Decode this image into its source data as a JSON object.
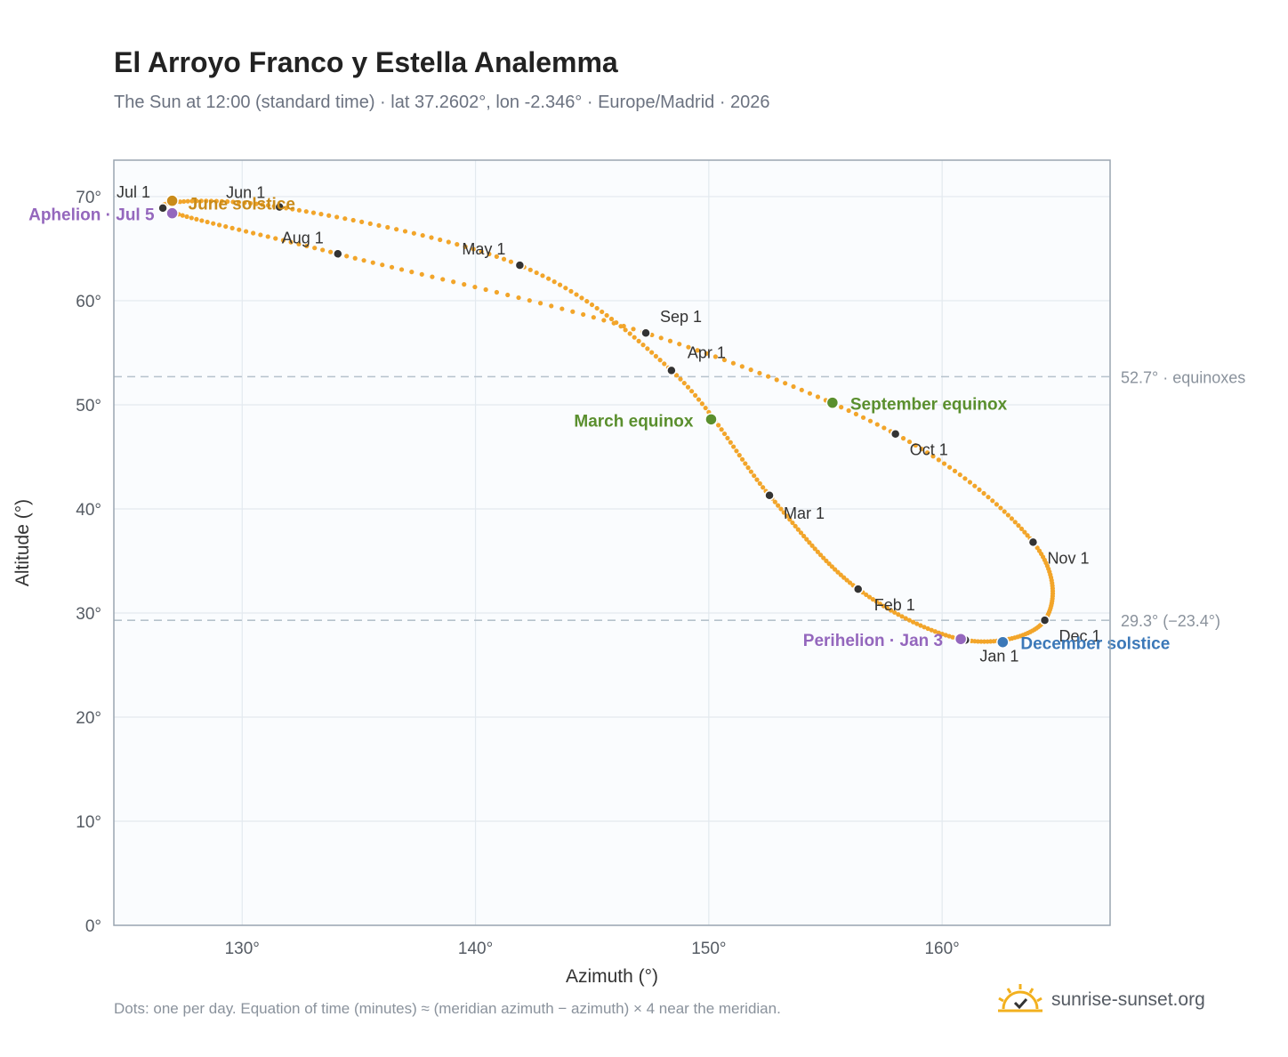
{
  "title": "El Arroyo Franco y Estella Analemma",
  "subtitle": "The Sun at 12:00 (standard time) · lat 37.2602°, lon -2.346° · Europe/Madrid · 2026",
  "footnote": "Dots: one per day. Equation of time (minutes) ≈ (meridian azimuth − azimuth) × 4 near the meridian.",
  "brand": {
    "name": "sunrise-sunset.org",
    "icon": "sun-logo-icon"
  },
  "colors": {
    "curve": "#f2a52a",
    "month_marker": "#333333",
    "solstice": "#c98b1a",
    "equinox": "#5a8f2e",
    "december": "#3b78b8",
    "apsis": "#9467bd",
    "reference_line": "#b6c2cc"
  },
  "chart_data": {
    "type": "scatter",
    "xlabel": "Azimuth (°)",
    "ylabel": "Altitude (°)",
    "xlim": [
      124.5,
      167.2
    ],
    "ylim": [
      0,
      73.5
    ],
    "x_ticks": [
      130,
      140,
      150,
      160
    ],
    "x_tick_labels": [
      "130°",
      "140°",
      "150°",
      "160°"
    ],
    "y_ticks": [
      0,
      10,
      20,
      30,
      40,
      50,
      60,
      70
    ],
    "y_tick_labels": [
      "0°",
      "10°",
      "20°",
      "30°",
      "40°",
      "50°",
      "60°",
      "70°"
    ],
    "grid": true,
    "legend": "none",
    "curve_note": "daily positions",
    "monthly_markers": [
      {
        "label": "Jan 1",
        "azimuth": 161.0,
        "altitude": 27.4
      },
      {
        "label": "Feb 1",
        "azimuth": 156.4,
        "altitude": 32.3
      },
      {
        "label": "Mar 1",
        "azimuth": 152.6,
        "altitude": 41.3
      },
      {
        "label": "Apr 1",
        "azimuth": 148.4,
        "altitude": 53.3
      },
      {
        "label": "May 1",
        "azimuth": 141.9,
        "altitude": 63.4
      },
      {
        "label": "Jun 1",
        "azimuth": 131.6,
        "altitude": 69.0
      },
      {
        "label": "Jul 1",
        "azimuth": 126.6,
        "altitude": 68.9
      },
      {
        "label": "Aug 1",
        "azimuth": 134.1,
        "altitude": 64.5
      },
      {
        "label": "Sep 1",
        "azimuth": 147.3,
        "altitude": 56.9
      },
      {
        "label": "Oct 1",
        "azimuth": 158.0,
        "altitude": 47.2
      },
      {
        "label": "Nov 1",
        "azimuth": 163.9,
        "altitude": 36.8
      },
      {
        "label": "Dec 1",
        "azimuth": 164.4,
        "altitude": 29.3
      }
    ],
    "special_points": [
      {
        "label": "June solstice",
        "azimuth": 127.0,
        "altitude": 69.6,
        "color_key": "solstice"
      },
      {
        "label": "Aphelion · Jul 5",
        "azimuth": 127.0,
        "altitude": 68.4,
        "color_key": "apsis"
      },
      {
        "label": "March equinox",
        "azimuth": 150.1,
        "altitude": 48.6,
        "color_key": "equinox"
      },
      {
        "label": "September equinox",
        "azimuth": 155.3,
        "altitude": 50.2,
        "color_key": "equinox"
      },
      {
        "label": "Perihelion · Jan 3",
        "azimuth": 160.8,
        "altitude": 27.5,
        "color_key": "apsis"
      },
      {
        "label": "December solstice",
        "azimuth": 162.6,
        "altitude": 27.2,
        "color_key": "december"
      }
    ],
    "reference_lines": [
      {
        "altitude": 52.7,
        "label": "52.7° · equinoxes"
      },
      {
        "altitude": 29.3,
        "label": "29.3° (−23.4°)"
      }
    ]
  }
}
